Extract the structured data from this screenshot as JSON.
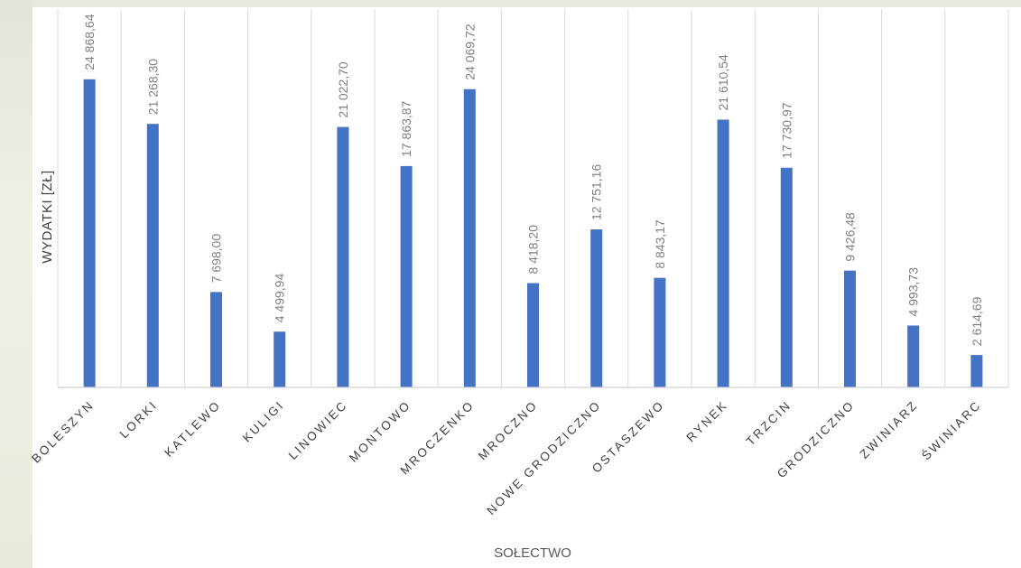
{
  "chart_data": {
    "type": "bar",
    "xlabel": "SOŁECTWO",
    "ylabel": "WYDATKI [ZŁ]",
    "categories": [
      "BOLESZYN",
      "LORKI",
      "KATLEWO",
      "KULIGI",
      "LINOWIEC",
      "MONTOWO",
      "MROCZENKO",
      "MROCZNO",
      "NOWE GRODZICZNO",
      "OSTASZEWO",
      "RYNEK",
      "TRZCIN",
      "GRODZICZNO",
      "ZWINIARZ",
      "ŚWINIARC"
    ],
    "values": [
      24868.64,
      21268.3,
      7698.0,
      4499.94,
      21022.7,
      17863.87,
      24069.72,
      8418.2,
      12751.16,
      8843.17,
      21610.54,
      17730.97,
      9426.48,
      4993.73,
      2614.69
    ],
    "data_labels": [
      "24 868,64",
      "21 268,30",
      "7 698,00",
      "4 499,94",
      "21 022,70",
      "17 863,87",
      "24 069,72",
      "8 418,20",
      "12 751,16",
      "8 843,17",
      "21 610,54",
      "17 730,97",
      "9 426,48",
      "4 993,73",
      "2 614,69"
    ],
    "ylim": [
      0,
      25000
    ],
    "grid": "vertical category separators",
    "bar_color": "#4472C4",
    "label_color": "#7f7f7f",
    "axis_text_color": "#404040"
  }
}
